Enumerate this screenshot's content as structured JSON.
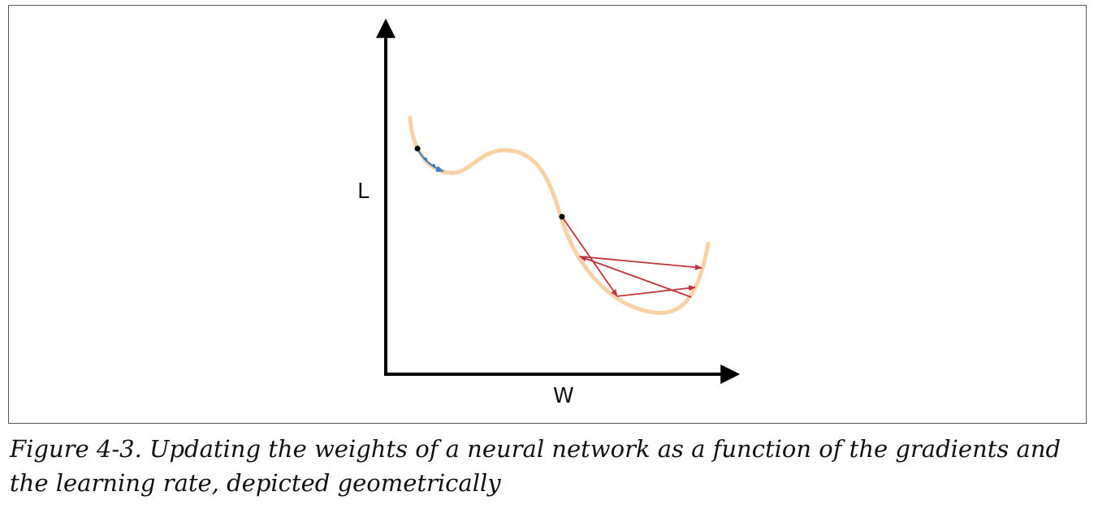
{
  "diagram": {
    "y_axis_label": "L",
    "x_axis_label": "W",
    "colors": {
      "axis": "#000000",
      "loss_curve": "#f8d2a6",
      "small_step_path": "#3b7fc4",
      "large_step_path": "#c0343a",
      "start_point": "#000000"
    }
  },
  "caption": {
    "line1": "Figure 4-3. Updating the weights of a neural network as a function of the gradients and",
    "line2": "the learning rate, depicted geometrically"
  }
}
